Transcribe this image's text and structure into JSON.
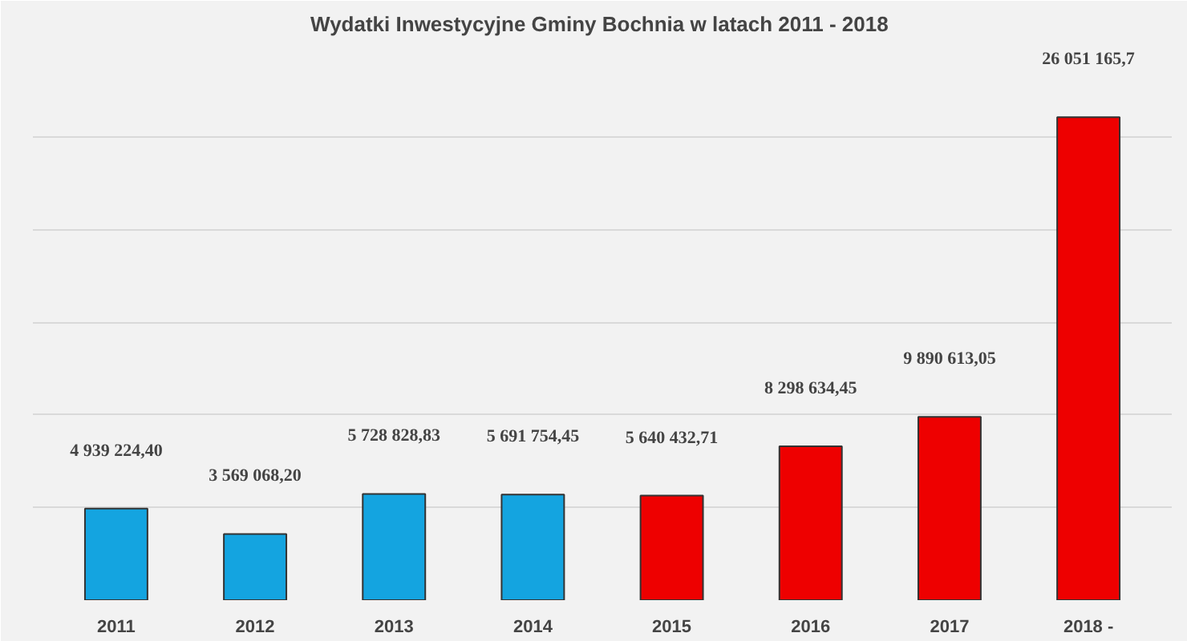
{
  "chart_data": {
    "type": "bar",
    "title": "Wydatki Inwestycyjne Gminy Bochnia  w latach 2011 - 2018",
    "categories": [
      "2011",
      "2012",
      "2013",
      "2014",
      "2015",
      "2016",
      "2017",
      "2018 -"
    ],
    "values": [
      4939224.4,
      3569068.2,
      5728828.83,
      5691754.45,
      5640432.71,
      8298634.45,
      9890613.05,
      26051165.7
    ],
    "value_labels": [
      "4 939 224,40",
      "3 569 068,20",
      "5 728 828,83",
      "5 691 754,45",
      "5 640 432,71",
      "8 298 634,45",
      "9 890 613,05",
      "26 051 165,7"
    ],
    "colors": [
      "#14a4e0",
      "#14a4e0",
      "#14a4e0",
      "#14a4e0",
      "#ee0000",
      "#ee0000",
      "#ee0000",
      "#ee0000"
    ],
    "ylim": [
      0,
      30000000
    ],
    "yticks": [
      {
        "value": 0,
        "label": null
      },
      {
        "value": 5000000,
        "label": null
      },
      {
        "value": 10000000,
        "label": null
      },
      {
        "value": 15000000,
        "label": null
      },
      {
        "value": 20000000,
        "label": null
      },
      {
        "value": 25000000,
        "label": null
      },
      {
        "value": 30000000,
        "label": null
      }
    ],
    "tick_labels": "x",
    "grid": "y"
  }
}
